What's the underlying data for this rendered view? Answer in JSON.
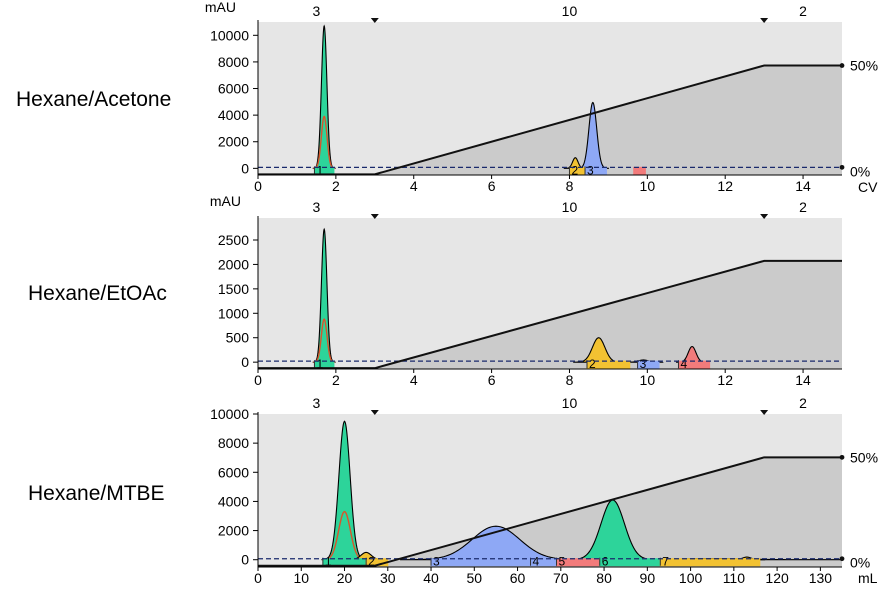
{
  "chart_data": [
    {
      "type": "line",
      "title": "Hexane/Acetone",
      "ylabel": "mAU",
      "xlabel": "CV",
      "xlim": [
        0,
        15
      ],
      "ylim": [
        -500,
        11000
      ],
      "x_ticks": [
        0,
        2,
        4,
        6,
        8,
        10,
        12,
        14
      ],
      "y_ticks": [
        0,
        2000,
        4000,
        6000,
        8000,
        10000
      ],
      "segment_steps": [
        3,
        10,
        2
      ],
      "segment_boundaries": [
        3,
        13
      ],
      "gradient": {
        "start_x": 3,
        "end_x": 13,
        "start_percent": 0,
        "end_percent": 50,
        "labels": [
          "50%",
          "0%"
        ],
        "ymax_percent": 70
      },
      "peaks": [
        {
          "center": 1.7,
          "width": 0.07,
          "height": 10700,
          "area_height": 10400,
          "secondary_height": 3900,
          "color": "#2dd49a"
        },
        {
          "center": 8.15,
          "width": 0.07,
          "height": 800,
          "color": "#f2c232"
        },
        {
          "center": 8.6,
          "width": 0.1,
          "height": 4950,
          "color": "#8ea8f5"
        }
      ],
      "fractions": [
        {
          "label": "1",
          "start": 1.45,
          "end": 1.95,
          "color": "#2dd49a"
        },
        {
          "label": "2",
          "start": 8.0,
          "end": 8.4,
          "color": "#f2c232"
        },
        {
          "label": "3",
          "start": 8.4,
          "end": 8.95,
          "color": "#8ea8f5"
        },
        {
          "label": "",
          "start": 9.65,
          "end": 9.95,
          "color": "#f27b7b"
        }
      ],
      "show_gradient_labels": true
    },
    {
      "type": "line",
      "title": "Hexane/EtOAc",
      "ylabel": "mAU",
      "xlabel": "",
      "xlim": [
        0,
        15
      ],
      "ylim": [
        -140,
        2950
      ],
      "x_ticks": [
        0,
        2,
        4,
        6,
        8,
        10,
        12,
        14
      ],
      "y_ticks": [
        0,
        500,
        1000,
        1500,
        2000,
        2500
      ],
      "segment_steps": [
        3,
        10,
        2
      ],
      "segment_boundaries": [
        3,
        13
      ],
      "gradient": {
        "start_x": 3,
        "end_x": 13,
        "start_percent": 0,
        "end_percent": 50,
        "labels": [],
        "ymax_percent": 70
      },
      "peaks": [
        {
          "center": 1.7,
          "width": 0.07,
          "height": 2720,
          "area_height": 2650,
          "secondary_height": 880,
          "color": "#2dd49a"
        },
        {
          "center": 8.75,
          "width": 0.16,
          "height": 500,
          "color": "#f2c232"
        },
        {
          "center": 9.9,
          "width": 0.12,
          "height": 45,
          "color": "#8ea8f5"
        },
        {
          "center": 11.15,
          "width": 0.1,
          "height": 320,
          "color": "#f27b7b"
        }
      ],
      "fractions": [
        {
          "label": "1",
          "start": 1.45,
          "end": 1.95,
          "color": "#2dd49a"
        },
        {
          "label": "2",
          "start": 8.45,
          "end": 9.55,
          "color": "#f2c232"
        },
        {
          "label": "3",
          "start": 9.75,
          "end": 10.3,
          "color": "#8ea8f5"
        },
        {
          "label": "4",
          "start": 10.8,
          "end": 11.6,
          "color": "#f27b7b"
        }
      ],
      "show_gradient_labels": false
    },
    {
      "type": "line",
      "title": "Hexane/MTBE",
      "ylabel": "",
      "xlabel": "mL",
      "xlim": [
        0,
        135
      ],
      "ylim": [
        -500,
        10000
      ],
      "x_ticks": [
        0,
        10,
        20,
        30,
        40,
        50,
        60,
        70,
        80,
        90,
        100,
        110,
        120,
        130
      ],
      "y_ticks": [
        0,
        2000,
        4000,
        6000,
        8000,
        10000
      ],
      "segment_steps": [
        3,
        10,
        2
      ],
      "segment_boundaries": [
        27,
        117
      ],
      "gradient": {
        "start_x": 27,
        "end_x": 117,
        "start_percent": 0,
        "end_percent": 50,
        "labels": [
          "50%",
          "0%"
        ],
        "ymax_percent": 70
      },
      "peaks": [
        {
          "center": 20,
          "width": 1.3,
          "height": 9500,
          "area_height": 9300,
          "secondary_height": 3300,
          "color": "#2dd49a"
        },
        {
          "center": 25,
          "width": 1.2,
          "height": 500,
          "color": "#f2c232"
        },
        {
          "center": 55,
          "width": 5.5,
          "height": 2300,
          "color": "#8ea8f5"
        },
        {
          "center": 82,
          "width": 2.7,
          "height": 4100,
          "color": "#2dd49a"
        },
        {
          "center": 105,
          "width": 7.5,
          "height": 80,
          "color": "#f2c232"
        },
        {
          "center": 113,
          "width": 1.0,
          "height": 180,
          "color": "#f2c232"
        }
      ],
      "fractions": [
        {
          "label": "1",
          "start": 15,
          "end": 25,
          "color": "#2dd49a"
        },
        {
          "label": "2",
          "start": 25,
          "end": 30,
          "color": "#f2c232"
        },
        {
          "label": "3",
          "start": 40,
          "end": 63,
          "color": "#8ea8f5"
        },
        {
          "label": "4",
          "start": 63,
          "end": 69,
          "color": "#8ea8f5"
        },
        {
          "label": "5",
          "start": 69,
          "end": 79,
          "color": "#f27b7b"
        },
        {
          "label": "6",
          "start": 79,
          "end": 93,
          "color": "#2dd49a"
        },
        {
          "label": "7",
          "start": 93,
          "end": 116,
          "color": "#f2c232"
        }
      ],
      "show_gradient_labels": true
    }
  ]
}
